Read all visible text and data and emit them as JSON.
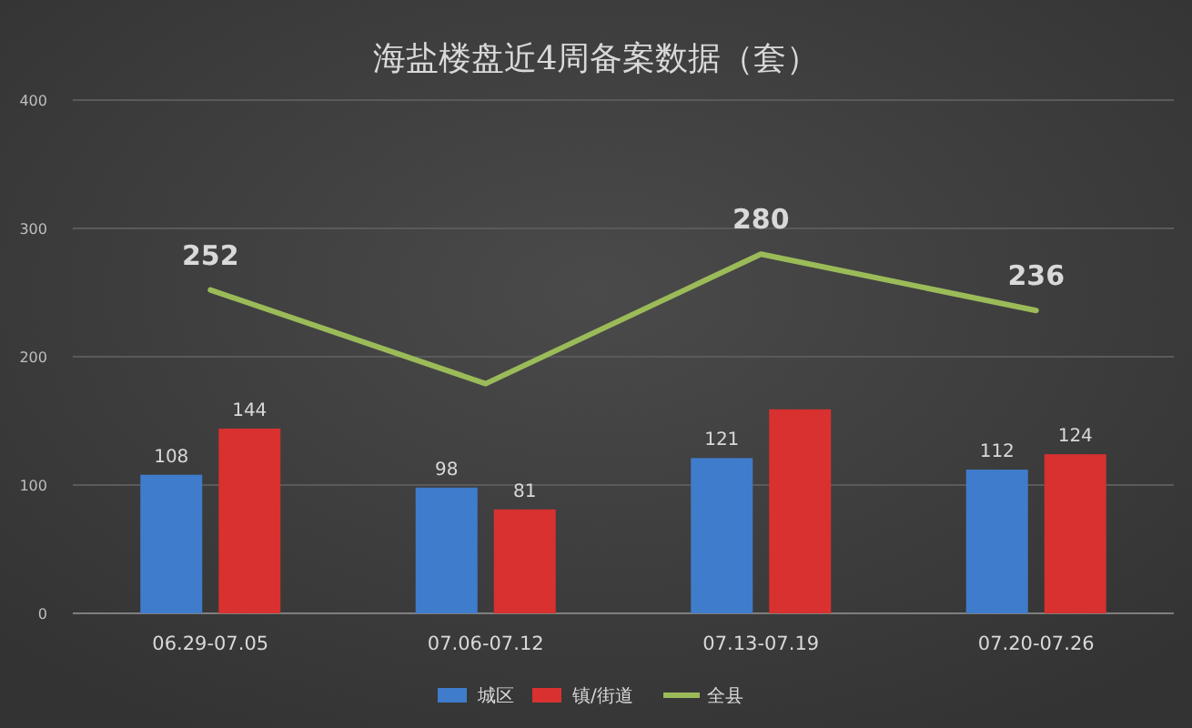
{
  "chart_data": {
    "type": "bar",
    "title": "海盐楼盘近4周备案数据（套）",
    "categories": [
      "06.29-07.05",
      "07.06-07.12",
      "07.13-07.19",
      "07.20-07.26"
    ],
    "series": [
      {
        "name": "城区",
        "color": "#3f7ccc",
        "values": [
          108,
          98,
          121,
          112
        ],
        "value_labels": [
          "108",
          "98",
          "121",
          "112"
        ]
      },
      {
        "name": "镇/街道",
        "color": "#d8312f",
        "values": [
          144,
          81,
          159,
          124
        ],
        "value_labels": [
          "144",
          "81",
          null,
          "124"
        ]
      },
      {
        "name": "全县",
        "type": "line",
        "color": "#9bbb59",
        "values": [
          252,
          179,
          280,
          236
        ],
        "value_labels": [
          "252",
          null,
          "280",
          "236"
        ]
      }
    ],
    "ylim": [
      0,
      400
    ],
    "yticks": [
      0,
      100,
      200,
      300,
      400
    ],
    "grid": "y",
    "legend": "bottom",
    "marker": "none"
  }
}
